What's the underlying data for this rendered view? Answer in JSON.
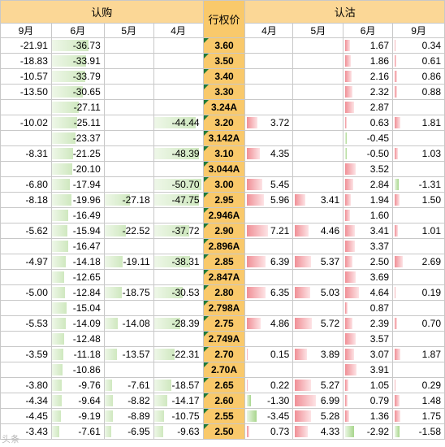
{
  "header": {
    "call_group": "认购",
    "strike_label": "行权价",
    "put_group": "认沽"
  },
  "call_months": [
    "9月",
    "6月",
    "5月",
    "4月"
  ],
  "put_months": [
    "4月",
    "5月",
    "6月",
    "9月"
  ],
  "colors": {
    "strike_bg": "#f9c96b",
    "group_bg": "#fbd796",
    "positive_bar": "#f08f96",
    "negative_bar": "#a8d68d"
  },
  "rows": [
    {
      "strike": "3.60",
      "call": [
        "-21.91",
        "-36.73",
        "",
        ""
      ],
      "put": [
        "",
        "",
        "1.67",
        "0.34"
      ]
    },
    {
      "strike": "3.50",
      "call": [
        "-18.83",
        "-33.91",
        "",
        ""
      ],
      "put": [
        "",
        "",
        "1.86",
        "0.61"
      ]
    },
    {
      "strike": "3.40",
      "call": [
        "-10.57",
        "-33.79",
        "",
        ""
      ],
      "put": [
        "",
        "",
        "2.16",
        "0.86"
      ]
    },
    {
      "strike": "3.30",
      "call": [
        "-13.50",
        "-30.65",
        "",
        ""
      ],
      "put": [
        "",
        "",
        "2.32",
        "0.88"
      ]
    },
    {
      "strike": "3.24A",
      "call": [
        "",
        "-27.11",
        "",
        ""
      ],
      "put": [
        "",
        "",
        "2.87",
        ""
      ]
    },
    {
      "strike": "3.20",
      "call": [
        "-10.02",
        "-25.11",
        "",
        "-44.44"
      ],
      "put": [
        "3.72",
        "",
        "0.63",
        "1.81"
      ]
    },
    {
      "strike": "3.142A",
      "call": [
        "",
        "-23.37",
        "",
        ""
      ],
      "put": [
        "",
        "",
        "-0.45",
        ""
      ]
    },
    {
      "strike": "3.10",
      "call": [
        "-8.31",
        "-21.25",
        "",
        "-48.39"
      ],
      "put": [
        "4.35",
        "",
        "-0.50",
        "1.03"
      ]
    },
    {
      "strike": "3.044A",
      "call": [
        "",
        "-20.10",
        "",
        ""
      ],
      "put": [
        "",
        "",
        "3.52",
        ""
      ]
    },
    {
      "strike": "3.00",
      "call": [
        "-6.80",
        "-17.94",
        "",
        "-50.70"
      ],
      "put": [
        "5.45",
        "",
        "2.84",
        "-1.31"
      ]
    },
    {
      "strike": "2.95",
      "call": [
        "-8.18",
        "-19.96",
        "-27.18",
        "-47.75"
      ],
      "put": [
        "5.96",
        "3.41",
        "1.94",
        "1.50"
      ]
    },
    {
      "strike": "2.946A",
      "call": [
        "",
        "-16.49",
        "",
        ""
      ],
      "put": [
        "",
        "",
        "1.60",
        ""
      ]
    },
    {
      "strike": "2.90",
      "call": [
        "-5.62",
        "-15.94",
        "-22.52",
        "-37.72"
      ],
      "put": [
        "7.21",
        "4.46",
        "3.41",
        "1.01"
      ]
    },
    {
      "strike": "2.896A",
      "call": [
        "",
        "-16.47",
        "",
        ""
      ],
      "put": [
        "",
        "",
        "3.37",
        ""
      ]
    },
    {
      "strike": "2.85",
      "call": [
        "-4.97",
        "-14.18",
        "-19.11",
        "-38.31"
      ],
      "put": [
        "6.39",
        "5.37",
        "2.50",
        "2.69"
      ]
    },
    {
      "strike": "2.847A",
      "call": [
        "",
        "-12.65",
        "",
        ""
      ],
      "put": [
        "",
        "",
        "3.69",
        ""
      ]
    },
    {
      "strike": "2.80",
      "call": [
        "-5.00",
        "-12.84",
        "-18.75",
        "-30.53"
      ],
      "put": [
        "6.35",
        "5.03",
        "4.64",
        "0.19"
      ]
    },
    {
      "strike": "2.798A",
      "call": [
        "",
        "-15.04",
        "",
        ""
      ],
      "put": [
        "",
        "",
        "0.87",
        ""
      ]
    },
    {
      "strike": "2.75",
      "call": [
        "-5.53",
        "-14.09",
        "-14.08",
        "-28.39"
      ],
      "put": [
        "4.86",
        "5.72",
        "2.39",
        "0.70"
      ]
    },
    {
      "strike": "2.749A",
      "call": [
        "",
        "-12.48",
        "",
        ""
      ],
      "put": [
        "",
        "",
        "3.57",
        ""
      ]
    },
    {
      "strike": "2.70",
      "call": [
        "-3.59",
        "-11.18",
        "-13.57",
        "-22.31"
      ],
      "put": [
        "0.15",
        "3.89",
        "3.07",
        "1.87"
      ]
    },
    {
      "strike": "2.70A",
      "call": [
        "",
        "-10.86",
        "",
        ""
      ],
      "put": [
        "",
        "",
        "3.91",
        ""
      ]
    },
    {
      "strike": "2.65",
      "call": [
        "-3.80",
        "-9.76",
        "-7.61",
        "-18.57"
      ],
      "put": [
        "0.22",
        "5.27",
        "1.05",
        "0.29"
      ]
    },
    {
      "strike": "2.60",
      "call": [
        "-4.34",
        "-9.64",
        "-8.82",
        "-14.17"
      ],
      "put": [
        "-1.30",
        "6.99",
        "0.79",
        "1.48"
      ]
    },
    {
      "strike": "2.55",
      "call": [
        "-4.45",
        "-9.19",
        "-8.89",
        "-10.75"
      ],
      "put": [
        "-3.45",
        "5.28",
        "1.36",
        "1.75"
      ]
    },
    {
      "strike": "2.50",
      "call": [
        "-3.43",
        "-7.61",
        "-6.95",
        "-9.63"
      ],
      "put": [
        "0.73",
        "4.33",
        "-2.92",
        "-1.58"
      ]
    }
  ],
  "watermark": "头条"
}
